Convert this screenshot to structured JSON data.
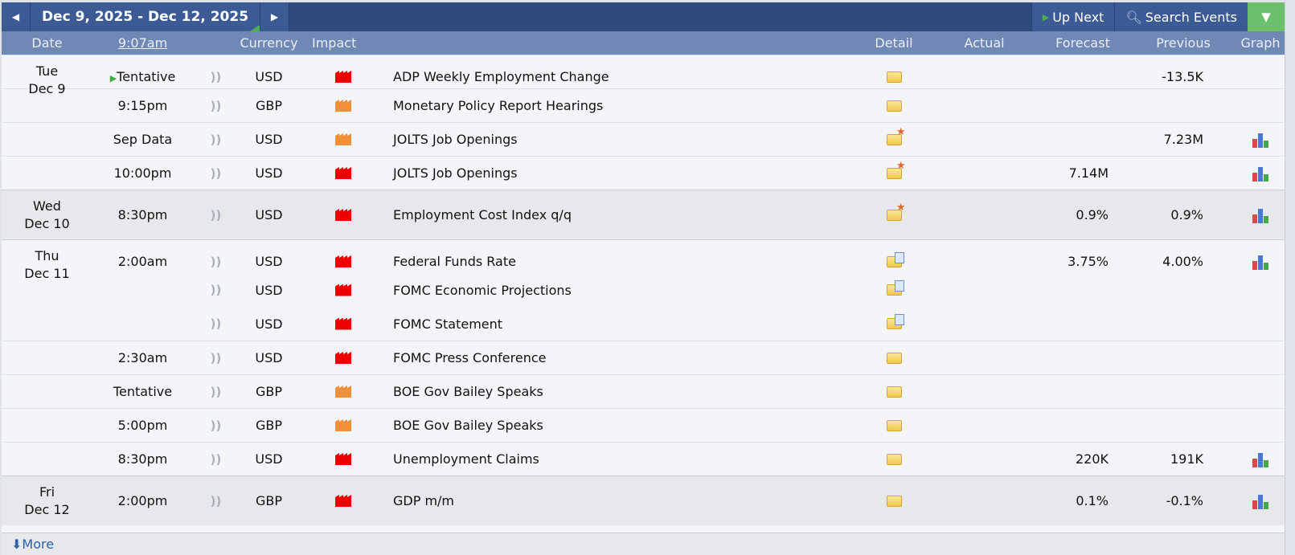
{
  "toolbar": {
    "prev_icon": "triangle-left-icon",
    "date_range": "Dec 9, 2025 - Dec 12, 2025",
    "next_icon": "triangle-right-icon",
    "up_next": "Up Next",
    "search_events": "Search Events",
    "filter_icon": "filter-icon"
  },
  "columns": {
    "date": "Date",
    "time": "9:07am",
    "currency": "Currency",
    "impact": "Impact",
    "detail": "Detail",
    "actual": "Actual",
    "forecast": "Forecast",
    "previous": "Previous",
    "graph": "Graph"
  },
  "colors": {
    "high": "#ee0000",
    "medium": "#f0903a",
    "topbar": "#2f4a7d",
    "header": "#7088b6",
    "filter": "#6cc06c"
  },
  "rows": [
    {
      "day": "Tue",
      "date": "Dec 9",
      "time": "Tentative",
      "next": true,
      "currency": "USD",
      "impact": "high",
      "event": "ADP Weekly Employment Change",
      "detail": "folder",
      "actual": "",
      "forecast": "",
      "previous": "-13.5K",
      "graph": false
    },
    {
      "time": "9:15pm",
      "currency": "GBP",
      "impact": "medium",
      "event": "Monetary Policy Report Hearings",
      "detail": "folder",
      "actual": "",
      "forecast": "",
      "previous": "",
      "graph": false
    },
    {
      "time": "Sep Data",
      "currency": "USD",
      "impact": "medium",
      "event": "JOLTS Job Openings",
      "detail": "folder-star",
      "actual": "",
      "forecast": "",
      "previous": "7.23M",
      "graph": true
    },
    {
      "time": "10:00pm",
      "currency": "USD",
      "impact": "high",
      "event": "JOLTS Job Openings",
      "detail": "folder-star",
      "actual": "",
      "forecast": "7.14M",
      "previous": "",
      "graph": true
    },
    {
      "day": "Wed",
      "date": "Dec 10",
      "time": "8:30pm",
      "currency": "USD",
      "impact": "high",
      "event": "Employment Cost Index q/q",
      "detail": "folder-star",
      "actual": "",
      "forecast": "0.9%",
      "previous": "0.9%",
      "graph": true
    },
    {
      "day": "Thu",
      "date": "Dec 11",
      "time": "2:00am",
      "currency": "USD",
      "impact": "high",
      "event": "Federal Funds Rate",
      "detail": "folder-doc",
      "actual": "",
      "forecast": "3.75%",
      "previous": "4.00%",
      "graph": true
    },
    {
      "time": "",
      "currency": "USD",
      "impact": "high",
      "event": "FOMC Economic Projections",
      "detail": "folder-doc",
      "actual": "",
      "forecast": "",
      "previous": "",
      "graph": false
    },
    {
      "time": "",
      "currency": "USD",
      "impact": "high",
      "event": "FOMC Statement",
      "detail": "folder-doc",
      "actual": "",
      "forecast": "",
      "previous": "",
      "graph": false
    },
    {
      "time": "2:30am",
      "currency": "USD",
      "impact": "high",
      "event": "FOMC Press Conference",
      "detail": "folder",
      "actual": "",
      "forecast": "",
      "previous": "",
      "graph": false
    },
    {
      "time": "Tentative",
      "currency": "GBP",
      "impact": "medium",
      "event": "BOE Gov Bailey Speaks",
      "detail": "folder",
      "actual": "",
      "forecast": "",
      "previous": "",
      "graph": false
    },
    {
      "time": "5:00pm",
      "currency": "GBP",
      "impact": "medium",
      "event": "BOE Gov Bailey Speaks",
      "detail": "folder",
      "actual": "",
      "forecast": "",
      "previous": "",
      "graph": false
    },
    {
      "time": "8:30pm",
      "currency": "USD",
      "impact": "high",
      "event": "Unemployment Claims",
      "detail": "folder",
      "actual": "",
      "forecast": "220K",
      "previous": "191K",
      "graph": true
    },
    {
      "day": "Fri",
      "date": "Dec 12",
      "time": "2:00pm",
      "currency": "GBP",
      "impact": "high",
      "event": "GDP m/m",
      "detail": "folder",
      "actual": "",
      "forecast": "0.1%",
      "previous": "-0.1%",
      "graph": true
    }
  ],
  "footer": {
    "more": "More",
    "more_icon": "download-arrow-icon"
  }
}
